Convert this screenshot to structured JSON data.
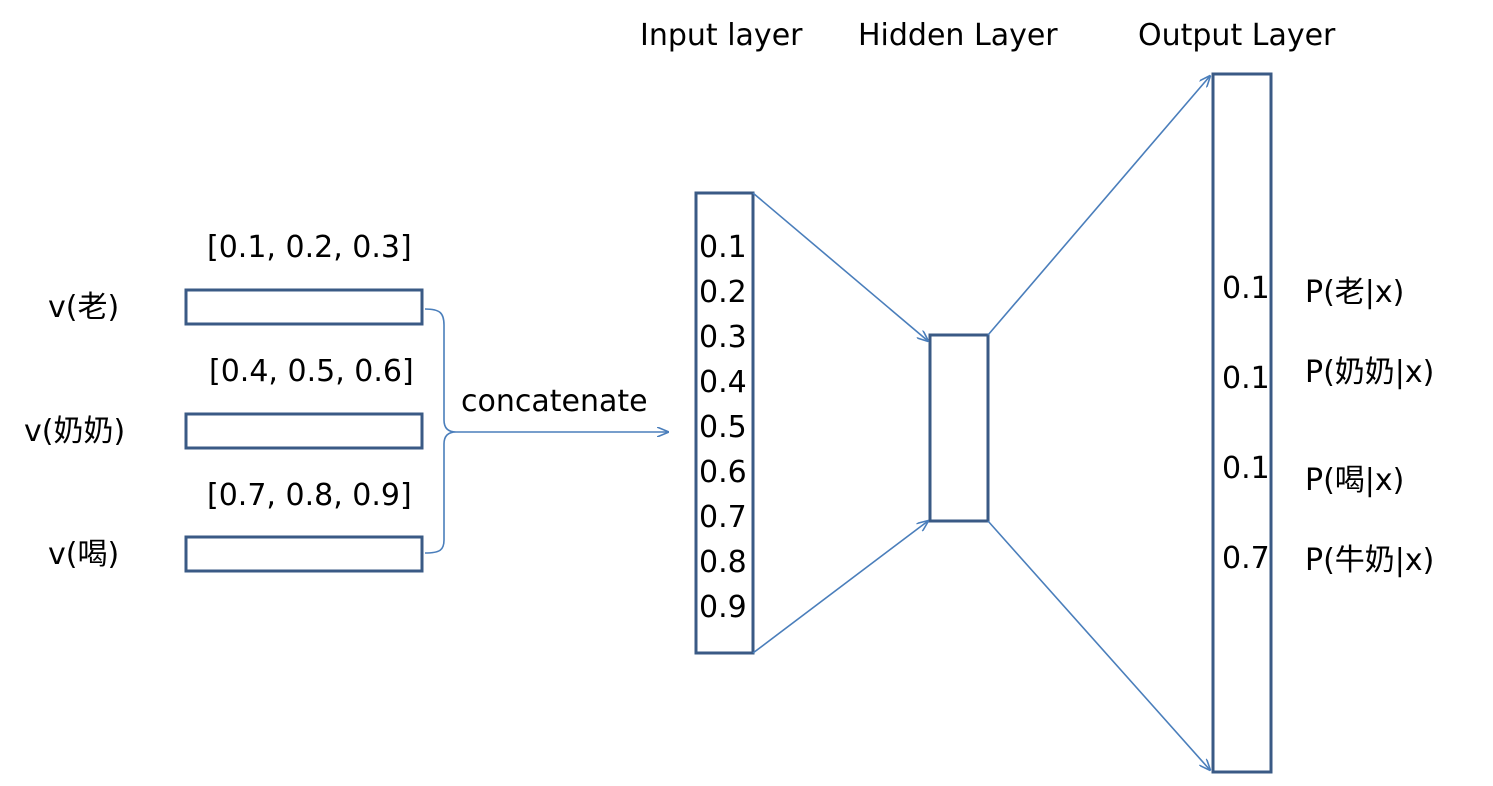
{
  "layers": {
    "input_title": "Input layer",
    "hidden_title": "Hidden Layer",
    "output_title": "Output Layer"
  },
  "embeddings": [
    {
      "word_label": "v(老)",
      "vector": "[0.1, 0.2, 0.3]"
    },
    {
      "word_label": "v(奶奶)",
      "vector": "[0.4, 0.5, 0.6]"
    },
    {
      "word_label": "v(喝)",
      "vector": "[0.7, 0.8, 0.9]"
    }
  ],
  "concat_label": "concatenate",
  "input_values": [
    "0.1",
    "0.2",
    "0.3",
    "0.4",
    "0.5",
    "0.6",
    "0.7",
    "0.8",
    "0.9"
  ],
  "outputs": [
    {
      "prob": "0.1",
      "label": "P(老|x)"
    },
    {
      "prob": "0.1",
      "label": "P(奶奶|x)"
    },
    {
      "prob": "0.1",
      "label": "P(喝|x)"
    },
    {
      "prob": "0.7",
      "label": "P(牛奶|x)"
    }
  ],
  "colors": {
    "box_stroke": "#3a5a85",
    "arrow": "#4a7ebb"
  }
}
